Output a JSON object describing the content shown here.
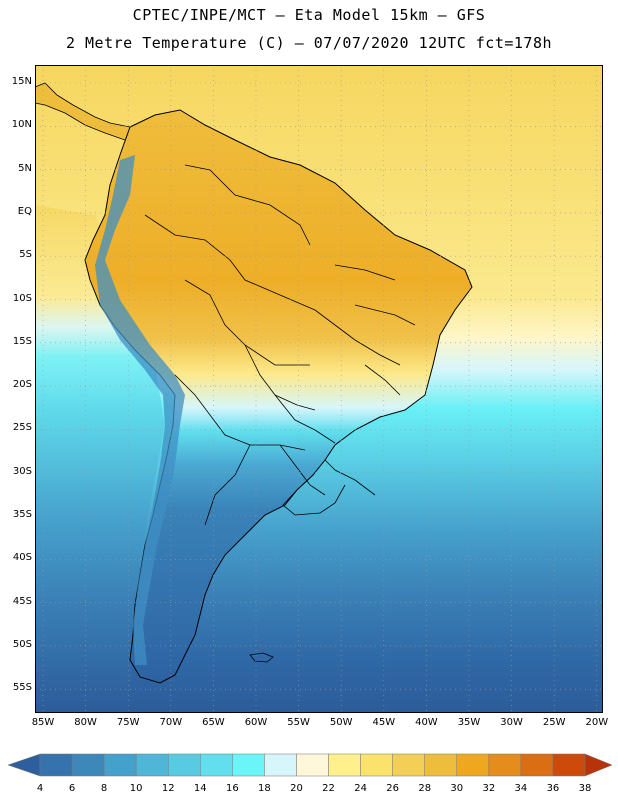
{
  "header": {
    "title_line1": "CPTEC/INPE/MCT –  Eta Model 15km – GFS",
    "title_line2": "2 Metre Temperature (C) – 07/07/2020 12UTC fct=178h"
  },
  "map": {
    "lat_labels": [
      "15N",
      "10N",
      "5N",
      "EQ",
      "5S",
      "10S",
      "15S",
      "20S",
      "25S",
      "30S",
      "35S",
      "40S",
      "45S",
      "50S",
      "55S"
    ],
    "lon_labels": [
      "85W",
      "80W",
      "75W",
      "70W",
      "65W",
      "60W",
      "55W",
      "50W",
      "45W",
      "40W",
      "35W",
      "30W",
      "25W",
      "20W"
    ],
    "colors": {
      "ocean_north": "#f5d35a",
      "ocean_mid": "#67e8f0",
      "ocean_south": "#2f6fae",
      "land_hot": "#eab43a",
      "grid": "#9a9a9a",
      "border": "#000000"
    }
  },
  "colorbar": {
    "labels": [
      "4",
      "6",
      "8",
      "10",
      "12",
      "14",
      "16",
      "18",
      "20",
      "22",
      "24",
      "26",
      "28",
      "30",
      "32",
      "34",
      "36",
      "38"
    ],
    "colors": [
      "#2f5e9e",
      "#3672ac",
      "#3d87bb",
      "#46a0cc",
      "#4fb6d8",
      "#58cbe3",
      "#61dfee",
      "#6af5f9",
      "#d6f6fb",
      "#fff7d9",
      "#fef08c",
      "#fbe26a",
      "#f4cf55",
      "#efbd3c",
      "#eea81f",
      "#e48c1c",
      "#db6d12",
      "#cd4a0a",
      "#b8320a"
    ]
  }
}
